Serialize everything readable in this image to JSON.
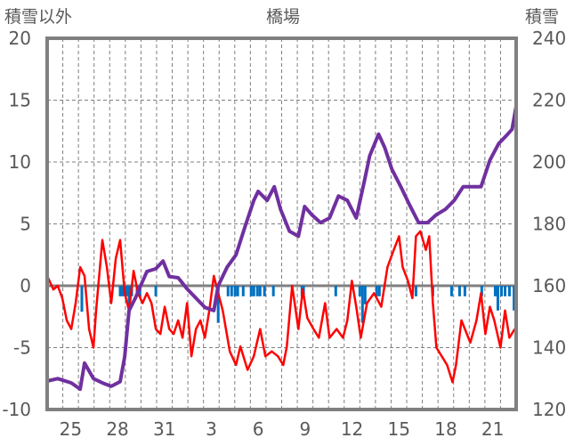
{
  "chart_data": {
    "type": "line",
    "title": "橋場",
    "ylabel_left": "積雪以外",
    "ylabel_right": "積雪",
    "ylim_left": [
      -10,
      20
    ],
    "yticks_left": [
      20,
      15,
      10,
      5,
      0,
      -5,
      -10
    ],
    "ylim_right": [
      120,
      240
    ],
    "yticks_right": [
      240,
      220,
      200,
      180,
      160,
      140,
      120
    ],
    "x_unit": "days from start of Dec 24",
    "xlim": [
      0,
      30
    ],
    "day_numbers": [
      24,
      25,
      26,
      27,
      28,
      29,
      30,
      31,
      1,
      2,
      3,
      4,
      5,
      6,
      7,
      8,
      9,
      10,
      11,
      12,
      13,
      14,
      15,
      16,
      17,
      18,
      19,
      20,
      21,
      22
    ],
    "xtick_labels": [
      "25",
      "28",
      "31",
      "3",
      "6",
      "9",
      "12",
      "15",
      "18",
      "21"
    ],
    "grid": true,
    "colors": {
      "snow_depth": "#7030A0",
      "red_series": "#FF0000",
      "blue_bars": "#0070C0"
    },
    "series": [
      {
        "name": "積雪",
        "axis": "right",
        "color": "#7030A0",
        "points": [
          [
            0,
            129.2
          ],
          [
            0.68,
            130
          ],
          [
            1.54,
            128.6
          ],
          [
            2.11,
            126.6
          ],
          [
            2.39,
            135
          ],
          [
            2.96,
            130
          ],
          [
            3.53,
            128.6
          ],
          [
            4.1,
            127.5
          ],
          [
            4.67,
            129
          ],
          [
            4.96,
            137
          ],
          [
            5.24,
            152
          ],
          [
            5.64,
            156
          ],
          [
            5.98,
            160
          ],
          [
            6.38,
            164.6
          ],
          [
            6.95,
            165.5
          ],
          [
            7.41,
            168
          ],
          [
            7.81,
            163
          ],
          [
            8.38,
            162.6
          ],
          [
            8.95,
            159
          ],
          [
            9.52,
            156
          ],
          [
            10.09,
            153
          ],
          [
            10.66,
            152
          ],
          [
            10.94,
            160
          ],
          [
            11.51,
            166
          ],
          [
            12.08,
            170
          ],
          [
            12.65,
            179
          ],
          [
            13.22,
            187.6
          ],
          [
            13.5,
            190.5
          ],
          [
            14.07,
            187.6
          ],
          [
            14.53,
            192
          ],
          [
            14.93,
            184.7
          ],
          [
            15.5,
            177.6
          ],
          [
            16.07,
            176
          ],
          [
            16.47,
            185.6
          ],
          [
            16.92,
            183
          ],
          [
            17.49,
            180.4
          ],
          [
            18.06,
            181.9
          ],
          [
            18.63,
            189
          ],
          [
            19.2,
            187.6
          ],
          [
            19.77,
            181.9
          ],
          [
            20.34,
            195
          ],
          [
            20.63,
            202
          ],
          [
            21.2,
            209
          ],
          [
            21.6,
            204.6
          ],
          [
            22.05,
            197.7
          ],
          [
            22.62,
            192
          ],
          [
            23.19,
            186
          ],
          [
            23.76,
            180.4
          ],
          [
            24.33,
            180.4
          ],
          [
            24.9,
            183
          ],
          [
            25.47,
            184.7
          ],
          [
            26.04,
            187.6
          ],
          [
            26.61,
            192
          ],
          [
            27.18,
            192
          ],
          [
            27.75,
            192
          ],
          [
            28.32,
            200.6
          ],
          [
            28.89,
            206
          ],
          [
            29.46,
            209
          ],
          [
            29.74,
            210.6
          ],
          [
            30,
            218
          ]
        ]
      },
      {
        "name": "積雪以外 (red)",
        "axis": "left",
        "color": "#FF0000",
        "points": [
          [
            0,
            0.8
          ],
          [
            0.4,
            -0.3
          ],
          [
            0.68,
            0
          ],
          [
            0.97,
            -1
          ],
          [
            1.25,
            -2.8
          ],
          [
            1.54,
            -3.5
          ],
          [
            1.82,
            -1.4
          ],
          [
            2.11,
            1.5
          ],
          [
            2.39,
            0.8
          ],
          [
            2.68,
            -3.5
          ],
          [
            2.96,
            -5
          ],
          [
            3.13,
            -2
          ],
          [
            3.53,
            3.7
          ],
          [
            3.82,
            1.5
          ],
          [
            4.1,
            -1.4
          ],
          [
            4.39,
            2.2
          ],
          [
            4.67,
            3.7
          ],
          [
            4.96,
            -0.6
          ],
          [
            5.24,
            -2
          ],
          [
            5.53,
            1.2
          ],
          [
            5.81,
            -0.6
          ],
          [
            6.1,
            -1.4
          ],
          [
            6.38,
            -0.6
          ],
          [
            6.67,
            -1.4
          ],
          [
            6.95,
            -3.5
          ],
          [
            7.24,
            -3.9
          ],
          [
            7.52,
            -1.7
          ],
          [
            7.81,
            -3.5
          ],
          [
            8.09,
            -3.9
          ],
          [
            8.38,
            -2.8
          ],
          [
            8.66,
            -4.2
          ],
          [
            8.95,
            -1.4
          ],
          [
            9.23,
            -5.7
          ],
          [
            9.52,
            -3.5
          ],
          [
            9.8,
            -2.8
          ],
          [
            10.09,
            -4.2
          ],
          [
            10.37,
            -2
          ],
          [
            10.66,
            0.8
          ],
          [
            10.94,
            -0.6
          ],
          [
            11.23,
            -2
          ],
          [
            11.68,
            -5.3
          ],
          [
            12.08,
            -6.4
          ],
          [
            12.36,
            -4.9
          ],
          [
            12.82,
            -6.8
          ],
          [
            13.22,
            -5.7
          ],
          [
            13.62,
            -3.5
          ],
          [
            13.96,
            -5.7
          ],
          [
            14.36,
            -5.3
          ],
          [
            14.76,
            -5.7
          ],
          [
            15.1,
            -6.4
          ],
          [
            15.33,
            -4.9
          ],
          [
            15.67,
            0
          ],
          [
            16.07,
            -3.5
          ],
          [
            16.35,
            -0.3
          ],
          [
            16.64,
            -2.6
          ],
          [
            17.04,
            -3.5
          ],
          [
            17.38,
            -4.2
          ],
          [
            17.78,
            -1.4
          ],
          [
            18.06,
            -4.2
          ],
          [
            18.52,
            -3.5
          ],
          [
            18.92,
            -4.2
          ],
          [
            19.2,
            -2.8
          ],
          [
            19.49,
            0.4
          ],
          [
            19.77,
            -1.7
          ],
          [
            20.06,
            -4.2
          ],
          [
            20.46,
            -1.4
          ],
          [
            20.91,
            -0.6
          ],
          [
            21.37,
            -1.7
          ],
          [
            21.77,
            1.5
          ],
          [
            22.17,
            2.9
          ],
          [
            22.51,
            4
          ],
          [
            22.74,
            1.5
          ],
          [
            23.08,
            0.4
          ],
          [
            23.36,
            -1
          ],
          [
            23.59,
            4
          ],
          [
            23.87,
            4.4
          ],
          [
            24.22,
            2.9
          ],
          [
            24.44,
            4
          ],
          [
            24.67,
            -1.4
          ],
          [
            24.9,
            -5
          ],
          [
            25.24,
            -5.7
          ],
          [
            25.58,
            -6.4
          ],
          [
            25.93,
            -7.8
          ],
          [
            26.15,
            -6.4
          ],
          [
            26.5,
            -2.8
          ],
          [
            26.72,
            -3.5
          ],
          [
            27.07,
            -4.6
          ],
          [
            27.46,
            -2.8
          ],
          [
            27.75,
            -0.6
          ],
          [
            28.03,
            -3.9
          ],
          [
            28.32,
            -1.7
          ],
          [
            28.6,
            -2.8
          ],
          [
            29.0,
            -5
          ],
          [
            29.29,
            -2
          ],
          [
            29.57,
            -4.2
          ],
          [
            29.91,
            -3.5
          ]
        ]
      },
      {
        "name": "積雪以外 (blue bars)",
        "axis": "left",
        "type": "bar",
        "color": "#0070C0",
        "points": [
          [
            2.22,
            -2.1
          ],
          [
            4.67,
            -0.85
          ],
          [
            4.84,
            -0.85
          ],
          [
            5.07,
            -0.85
          ],
          [
            5.24,
            -1.6
          ],
          [
            5.41,
            -0.85
          ],
          [
            5.75,
            -0.85
          ],
          [
            5.93,
            -0.85
          ],
          [
            6.95,
            -0.85
          ],
          [
            10.94,
            -3
          ],
          [
            11.57,
            -0.85
          ],
          [
            11.8,
            -0.85
          ],
          [
            12.02,
            -0.85
          ],
          [
            12.19,
            -0.85
          ],
          [
            12.54,
            -0.85
          ],
          [
            13.05,
            -0.85
          ],
          [
            13.22,
            -0.85
          ],
          [
            13.45,
            -0.85
          ],
          [
            13.62,
            -0.85
          ],
          [
            13.9,
            -0.85
          ],
          [
            14.47,
            -0.85
          ],
          [
            16.3,
            -0.85
          ],
          [
            16.4,
            -0.85
          ],
          [
            18.46,
            -0.85
          ],
          [
            20.0,
            -0.85
          ],
          [
            20.17,
            -3
          ],
          [
            20.34,
            -1.5
          ],
          [
            21.08,
            -0.85
          ],
          [
            21.25,
            -0.85
          ],
          [
            23.59,
            -0.85
          ],
          [
            24.67,
            -0.85
          ],
          [
            25.87,
            -0.85
          ],
          [
            26.38,
            -0.85
          ],
          [
            26.72,
            -0.85
          ],
          [
            27.8,
            -0.85
          ],
          [
            28.66,
            -0.85
          ],
          [
            28.83,
            -2
          ],
          [
            29.06,
            -0.85
          ],
          [
            29.29,
            -0.85
          ],
          [
            29.57,
            -0.85
          ],
          [
            29.86,
            -2
          ]
        ]
      }
    ]
  }
}
